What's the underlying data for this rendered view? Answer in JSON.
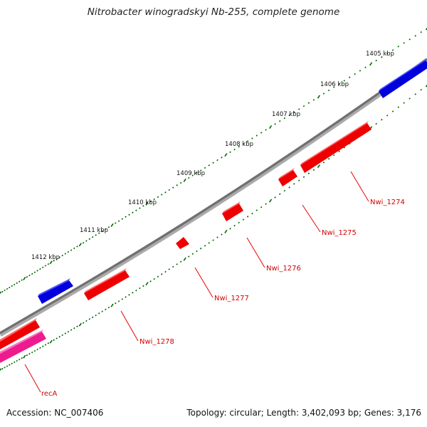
{
  "title": "Nitrobacter winogradskyi Nb-255, complete genome",
  "footer": {
    "accession": "Accession: NC_007406",
    "summary": "Topology: circular; Length: 3,402,093 bp; Genes: 3,176"
  },
  "colors": {
    "backbone": "#7a7a7a",
    "reverse_strand_gene": "#ee0000",
    "forward_strand_gene": "#0000dd",
    "rrna_gene": "#ee1b8f",
    "tick": "#006600",
    "label_line": "#ee0000"
  },
  "scale_labels": [
    "1405 kbp",
    "1406 kbp",
    "1407 kbp",
    "1408 kbp",
    "1409 kbp",
    "1410 kbp",
    "1411 kbp",
    "1412 kbp"
  ],
  "gene_labels": [
    "Nwi_1274",
    "Nwi_1275",
    "Nwi_1276",
    "Nwi_1277",
    "Nwi_1278",
    "recA"
  ]
}
